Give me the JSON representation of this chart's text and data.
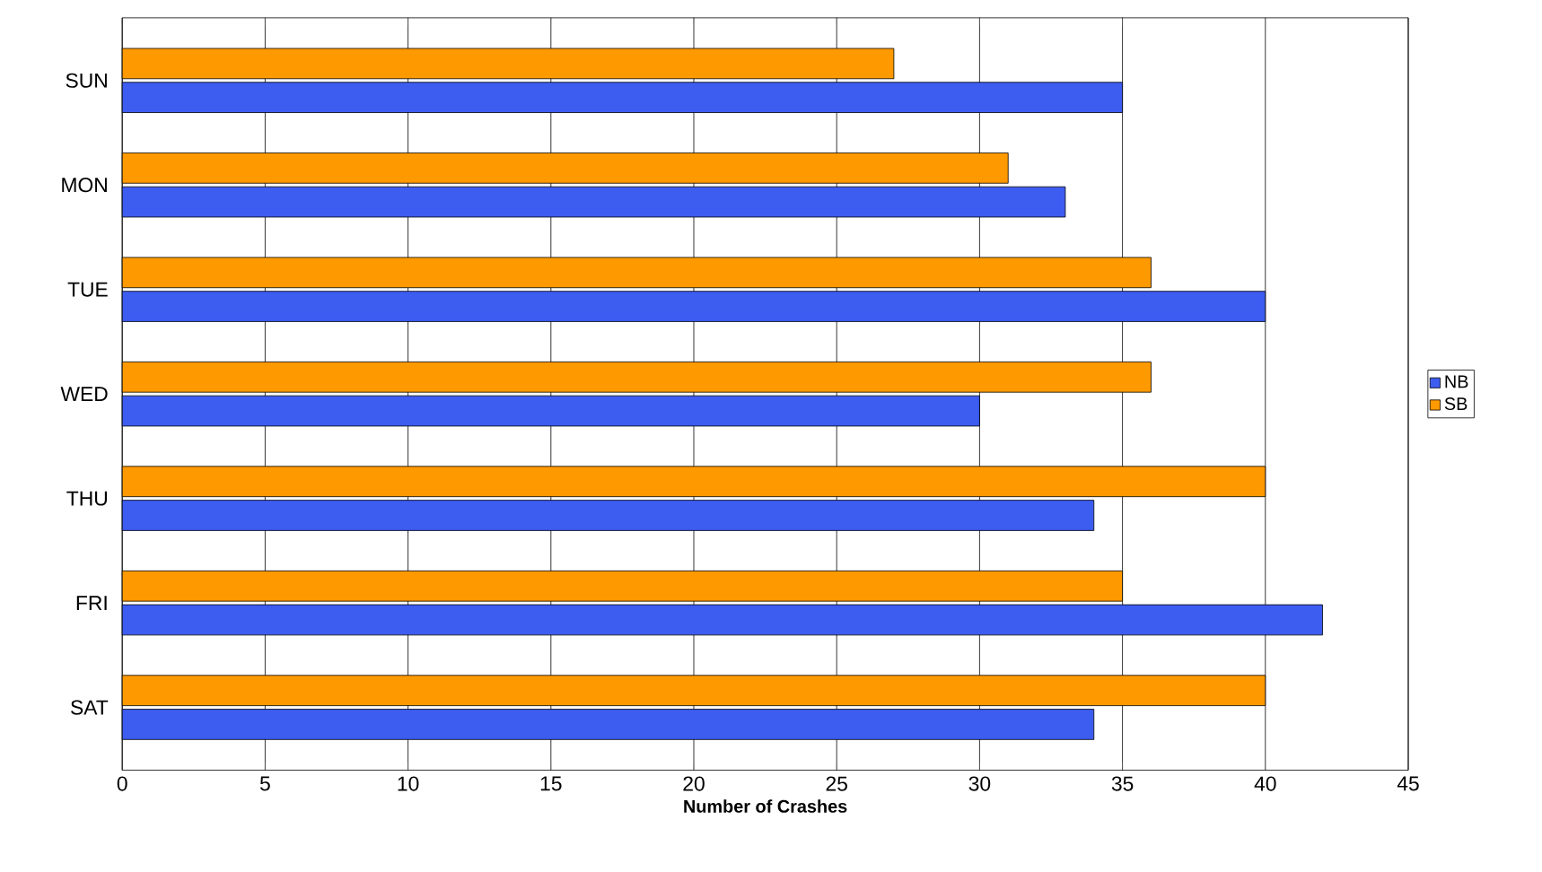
{
  "chart_data": {
    "type": "bar",
    "orientation": "horizontal",
    "categories": [
      "SUN",
      "MON",
      "TUE",
      "WED",
      "THU",
      "FRI",
      "SAT"
    ],
    "series": [
      {
        "name": "NB",
        "color": "#3d5cf0",
        "values": [
          35,
          33,
          40,
          30,
          34,
          42,
          34
        ]
      },
      {
        "name": "SB",
        "color": "#ff9900",
        "values": [
          27,
          31,
          36,
          36,
          40,
          35,
          40
        ]
      }
    ],
    "xlabel": "Number of Crashes",
    "xlim": [
      0,
      45
    ],
    "xticks": [
      0,
      5,
      10,
      15,
      20,
      25,
      30,
      35,
      40,
      45
    ],
    "grid": "x",
    "legend": "right"
  }
}
